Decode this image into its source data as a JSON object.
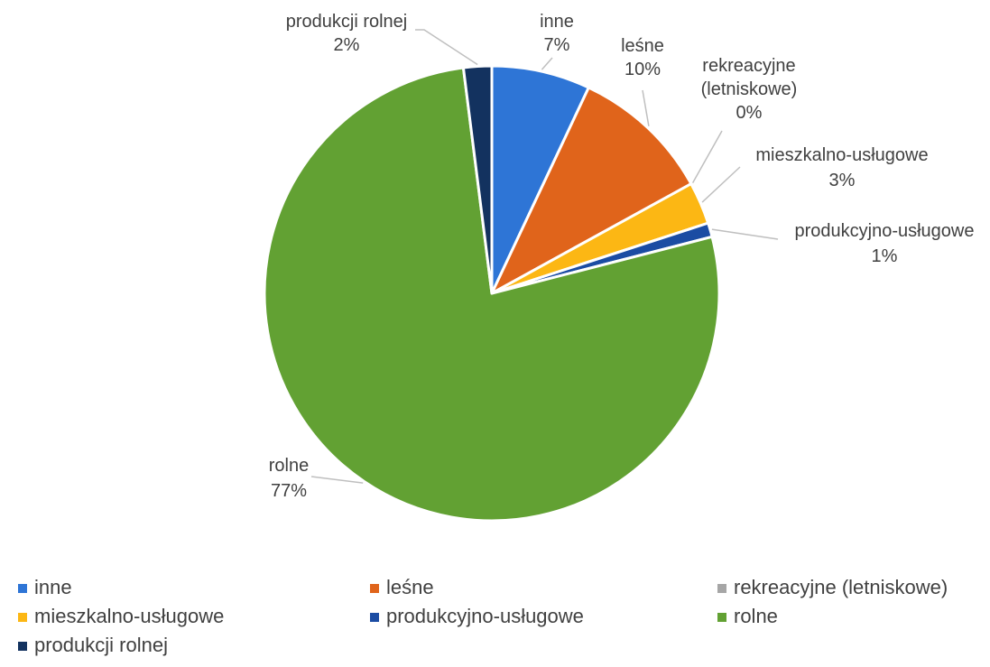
{
  "chart_data": {
    "type": "pie",
    "title": "",
    "series": [
      {
        "values": [
          {
            "category": "inne",
            "value": 7,
            "label": "7%",
            "color": "#2e75d6"
          },
          {
            "category": "leśne",
            "value": 10,
            "label": "10%",
            "color": "#e0641b"
          },
          {
            "category": "rekreacyjne (letniskowe)",
            "value": 0,
            "label": "0%",
            "color": "#a6a6a6"
          },
          {
            "category": "mieszkalno-usługowe",
            "value": 3,
            "label": "3%",
            "color": "#fcb714"
          },
          {
            "category": "produkcyjno-usługowe",
            "value": 1,
            "label": "1%",
            "color": "#1b4ca3"
          },
          {
            "category": "rolne",
            "value": 77,
            "label": "77%",
            "color": "#62a133"
          },
          {
            "category": "produkcji rolnej",
            "value": 2,
            "label": "2%",
            "color": "#13325f"
          }
        ]
      }
    ],
    "data_labels": {
      "inne": [
        "inne"
      ],
      "leśne": [
        "leśne"
      ],
      "rekreacyjne (letniskowe)": [
        "rekreacyjne",
        "(letniskowe)"
      ],
      "mieszkalno-usługowe": [
        "mieszkalno-usługowe"
      ],
      "produkcyjno-usługowe": [
        "produkcyjno-usługowe"
      ],
      "rolne": [
        "rolne"
      ],
      "produkcji rolnej": [
        "produkcji rolnej"
      ]
    },
    "legend": {
      "position": "bottom",
      "items": [
        "inne",
        "leśne",
        "rekreacyjne (letniskowe)",
        "mieszkalno-usługowe",
        "produkcyjno-usługowe",
        "rolne",
        "produkcji rolnej"
      ]
    }
  }
}
